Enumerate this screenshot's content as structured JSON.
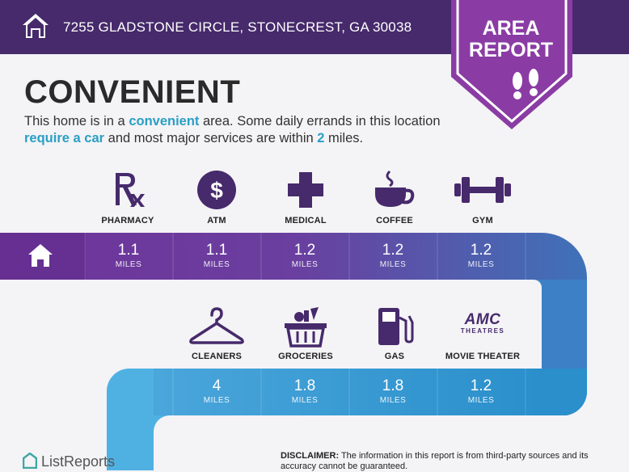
{
  "header": {
    "address": "7255 GLADSTONE CIRCLE, STONECREST, GA 30038",
    "badge_line1": "AREA",
    "badge_line2": "REPORT"
  },
  "title": "CONVENIENT",
  "description": {
    "p1": "This home is in a ",
    "h1": "convenient",
    "p2": " area. Some daily errands in this location ",
    "h2": "require a car",
    "p3": " and most major services are within ",
    "h3": "2",
    "p4": " miles."
  },
  "row1": [
    {
      "label": "PHARMACY",
      "value": "1.1",
      "unit": "MILES",
      "icon": "rx-icon"
    },
    {
      "label": "ATM",
      "value": "1.1",
      "unit": "MILES",
      "icon": "dollar-icon"
    },
    {
      "label": "MEDICAL",
      "value": "1.2",
      "unit": "MILES",
      "icon": "medical-cross-icon"
    },
    {
      "label": "COFFEE",
      "value": "1.2",
      "unit": "MILES",
      "icon": "coffee-cup-icon"
    },
    {
      "label": "GYM",
      "value": "1.2",
      "unit": "MILES",
      "icon": "dumbbell-icon"
    }
  ],
  "row2": [
    {
      "label": "CLEANERS",
      "value": "4",
      "unit": "MILES",
      "icon": "hanger-icon"
    },
    {
      "label": "GROCERIES",
      "value": "1.8",
      "unit": "MILES",
      "icon": "grocery-basket-icon"
    },
    {
      "label": "GAS",
      "value": "1.8",
      "unit": "MILES",
      "icon": "gas-pump-icon"
    },
    {
      "label": "MOVIE THEATER",
      "value": "1.2",
      "unit": "MILES",
      "icon": "amc-theatres-logo"
    }
  ],
  "amc": {
    "line1": "AMC",
    "line2": "THEATRES"
  },
  "footer": {
    "brand": "ListReports",
    "disclaimer_label": "DISCLAIMER:",
    "disclaimer_text": " The information in this report is from third-party sources and its accuracy cannot be guaranteed."
  },
  "colors": {
    "header": "#462a6b",
    "badge": "#8a3ca4",
    "row1_start": "#6f339a",
    "row1_end": "#3f72b8",
    "row2": "#2ba3d6"
  }
}
